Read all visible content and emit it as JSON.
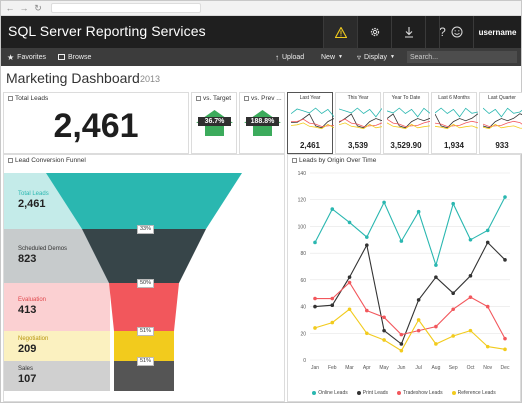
{
  "browser": {
    "url": ""
  },
  "app": {
    "title": "SQL Server Reporting Services",
    "username": "username"
  },
  "top_icons": [
    "alert-icon",
    "gear-icon",
    "download-icon",
    "help-icon",
    "smiley-icon"
  ],
  "toolbar": {
    "favorites": "Favorites",
    "browse": "Browse",
    "upload": "Upload",
    "new": "New",
    "display": "Display",
    "search_placeholder": "Search..."
  },
  "dashboard": {
    "title": "Marketing Dashboard",
    "year": "2013"
  },
  "total_leads": {
    "title": "Total Leads",
    "value": "2,461"
  },
  "kpis": [
    {
      "title": "vs. Target",
      "value": "36.7%",
      "color": "#3cab5c"
    },
    {
      "title": "vs. Prev ...",
      "value": "188.8%",
      "color": "#3cab5c"
    }
  ],
  "sparks": [
    {
      "title": "Last Year",
      "value": "2,461"
    },
    {
      "title": "This Year",
      "value": "3,539"
    },
    {
      "title": "Year To Date",
      "value": "3,529.90"
    },
    {
      "title": "Last 6 Months",
      "value": "1,934"
    },
    {
      "title": "Last Quarter",
      "value": "933"
    }
  ],
  "funnel": {
    "title": "Lead Conversion Funnel",
    "stages": [
      {
        "label": "Total Leads",
        "value": "2,461",
        "color": "#2ab7b0",
        "label_color": "#2ab7b0"
      },
      {
        "label": "Scheduled Demos",
        "value": "823",
        "color": "#374549",
        "label_color": "#333333"
      },
      {
        "label": "Evaluation",
        "value": "413",
        "color": "#f2575c",
        "label_color": "#e0474c"
      },
      {
        "label": "Negotiation",
        "value": "209",
        "color": "#f2cb1d",
        "label_color": "#b8960e"
      },
      {
        "label": "Sales",
        "value": "107",
        "color": "#555555",
        "label_color": "#333333"
      }
    ],
    "percents": [
      "33%",
      "50%",
      "51%",
      "51%"
    ]
  },
  "chart_data": {
    "type": "line",
    "title": "Leads by Origin Over Time",
    "categories": [
      "Jan",
      "Feb",
      "Mar",
      "Apr",
      "May",
      "Jun",
      "Jul",
      "Aug",
      "Sep",
      "Oct",
      "Nov",
      "Dec"
    ],
    "ylim": [
      0,
      140
    ],
    "yticks": [
      0,
      20,
      40,
      60,
      80,
      100,
      120,
      140
    ],
    "grid": true,
    "legend": "bottom",
    "series": [
      {
        "name": "Online Leads",
        "color": "#2ab7b0",
        "values": [
          88,
          113,
          103,
          92,
          118,
          89,
          111,
          71,
          117,
          90,
          97,
          122
        ]
      },
      {
        "name": "Print Leads",
        "color": "#333333",
        "values": [
          40,
          41,
          62,
          86,
          22,
          12,
          45,
          62,
          50,
          63,
          88,
          75
        ]
      },
      {
        "name": "Tradeshow Leads",
        "color": "#f2575c",
        "values": [
          46,
          46,
          58,
          37,
          32,
          19,
          22,
          25,
          38,
          47,
          40,
          16
        ]
      },
      {
        "name": "Reference Leads",
        "color": "#f2cb1d",
        "values": [
          24,
          28,
          38,
          20,
          15,
          7,
          30,
          12,
          18,
          22,
          10,
          8
        ]
      }
    ]
  }
}
